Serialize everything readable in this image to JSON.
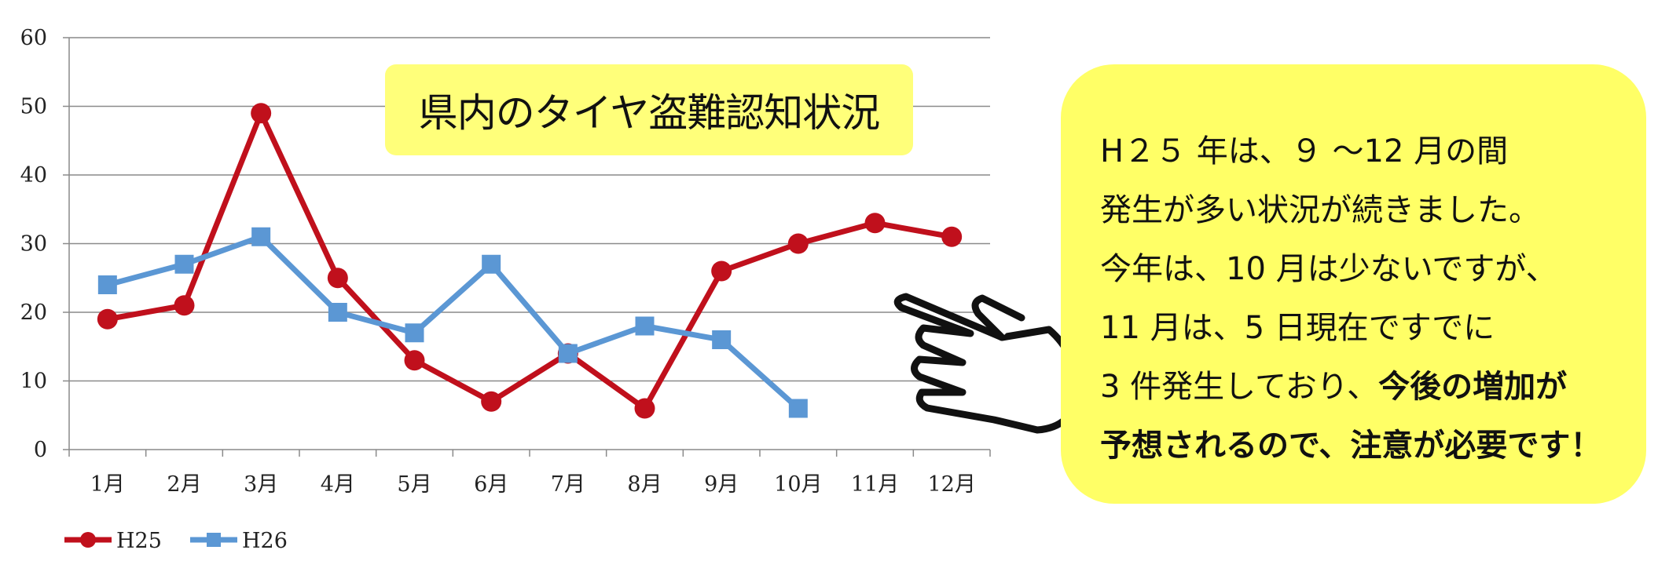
{
  "chart_data": {
    "type": "line",
    "title": "県内のタイヤ盗難認知状況",
    "categories": [
      "1月",
      "2月",
      "3月",
      "4月",
      "5月",
      "6月",
      "7月",
      "8月",
      "9月",
      "10月",
      "11月",
      "12月"
    ],
    "ylim": [
      0,
      60
    ],
    "yticks": [
      "0",
      "10",
      "20",
      "30",
      "40",
      "50",
      "60"
    ],
    "grid": true,
    "legend": "bottom-left",
    "series": [
      {
        "name": "H25",
        "color": "#c0101c",
        "marker": "circle",
        "values": [
          19,
          21,
          49,
          25,
          13,
          7,
          14,
          6,
          26,
          30,
          33,
          31
        ]
      },
      {
        "name": "H26",
        "color": "#5b97d4",
        "marker": "square",
        "values": [
          24,
          27,
          31,
          20,
          17,
          27,
          14,
          18,
          16,
          6,
          null,
          null
        ]
      }
    ]
  },
  "note": {
    "line1": "H２５ 年は、９ ～12 月の間",
    "line2": "発生が多い状況が続きました。",
    "line3": "今年は、10 月は少ないですが、",
    "line4": "11 月は、5 日現在ですでに",
    "line5_normal": "3 件発生しており、",
    "line5_bold": "今後の増加が",
    "line6": "予想されるので、注意が必要です！"
  },
  "colors": {
    "title_bg": "#ffff7a",
    "note_bg": "#ffff66"
  },
  "icon": "pointing-hand-icon"
}
